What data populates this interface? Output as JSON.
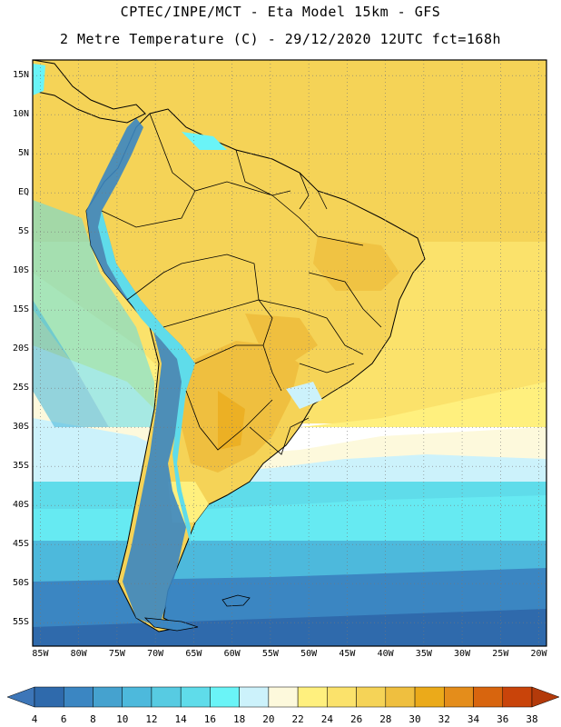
{
  "header": {
    "line1": "CPTEC/INPE/MCT -  Eta Model 15km - GFS",
    "line2": "2 Metre Temperature (C) - 29/12/2020 12UTC fct=168h"
  },
  "map": {
    "lon_range": [
      -86,
      -19
    ],
    "lat_range": [
      -58,
      17
    ],
    "lat_labels": [
      {
        "text": "15N",
        "lat": 15
      },
      {
        "text": "10N",
        "lat": 10
      },
      {
        "text": "5N",
        "lat": 5
      },
      {
        "text": "EQ",
        "lat": 0
      },
      {
        "text": "5S",
        "lat": -5
      },
      {
        "text": "10S",
        "lat": -10
      },
      {
        "text": "15S",
        "lat": -15
      },
      {
        "text": "20S",
        "lat": -20
      },
      {
        "text": "25S",
        "lat": -25
      },
      {
        "text": "30S",
        "lat": -30
      },
      {
        "text": "35S",
        "lat": -35
      },
      {
        "text": "40S",
        "lat": -40
      },
      {
        "text": "45S",
        "lat": -45
      },
      {
        "text": "50S",
        "lat": -50
      },
      {
        "text": "55S",
        "lat": -55
      }
    ],
    "lon_labels": [
      {
        "text": "85W",
        "lon": -85
      },
      {
        "text": "80W",
        "lon": -80
      },
      {
        "text": "75W",
        "lon": -75
      },
      {
        "text": "70W",
        "lon": -70
      },
      {
        "text": "65W",
        "lon": -65
      },
      {
        "text": "60W",
        "lon": -60
      },
      {
        "text": "55W",
        "lon": -55
      },
      {
        "text": "50W",
        "lon": -50
      },
      {
        "text": "45W",
        "lon": -45
      },
      {
        "text": "40W",
        "lon": -40
      },
      {
        "text": "35W",
        "lon": -35
      },
      {
        "text": "30W",
        "lon": -30
      },
      {
        "text": "25W",
        "lon": -25
      },
      {
        "text": "20W",
        "lon": -20
      }
    ]
  },
  "colorbar": {
    "labels": [
      "4",
      "6",
      "8",
      "10",
      "12",
      "14",
      "16",
      "18",
      "20",
      "22",
      "24",
      "26",
      "28",
      "30",
      "32",
      "34",
      "36",
      "38"
    ],
    "low_color": "#3d76b8",
    "high_color": "#b33a0a",
    "colors": [
      "#2f6aac",
      "#3b86c2",
      "#45a2cf",
      "#4db9dc",
      "#57cbe2",
      "#5fdcea",
      "#6af4f7",
      "#ccf2fb",
      "#fdf9dc",
      "#fff07e",
      "#fbe26b",
      "#f5d357",
      "#efbf3f",
      "#ebaa1a",
      "#e48d1b",
      "#d8650e",
      "#c9440a"
    ]
  }
}
